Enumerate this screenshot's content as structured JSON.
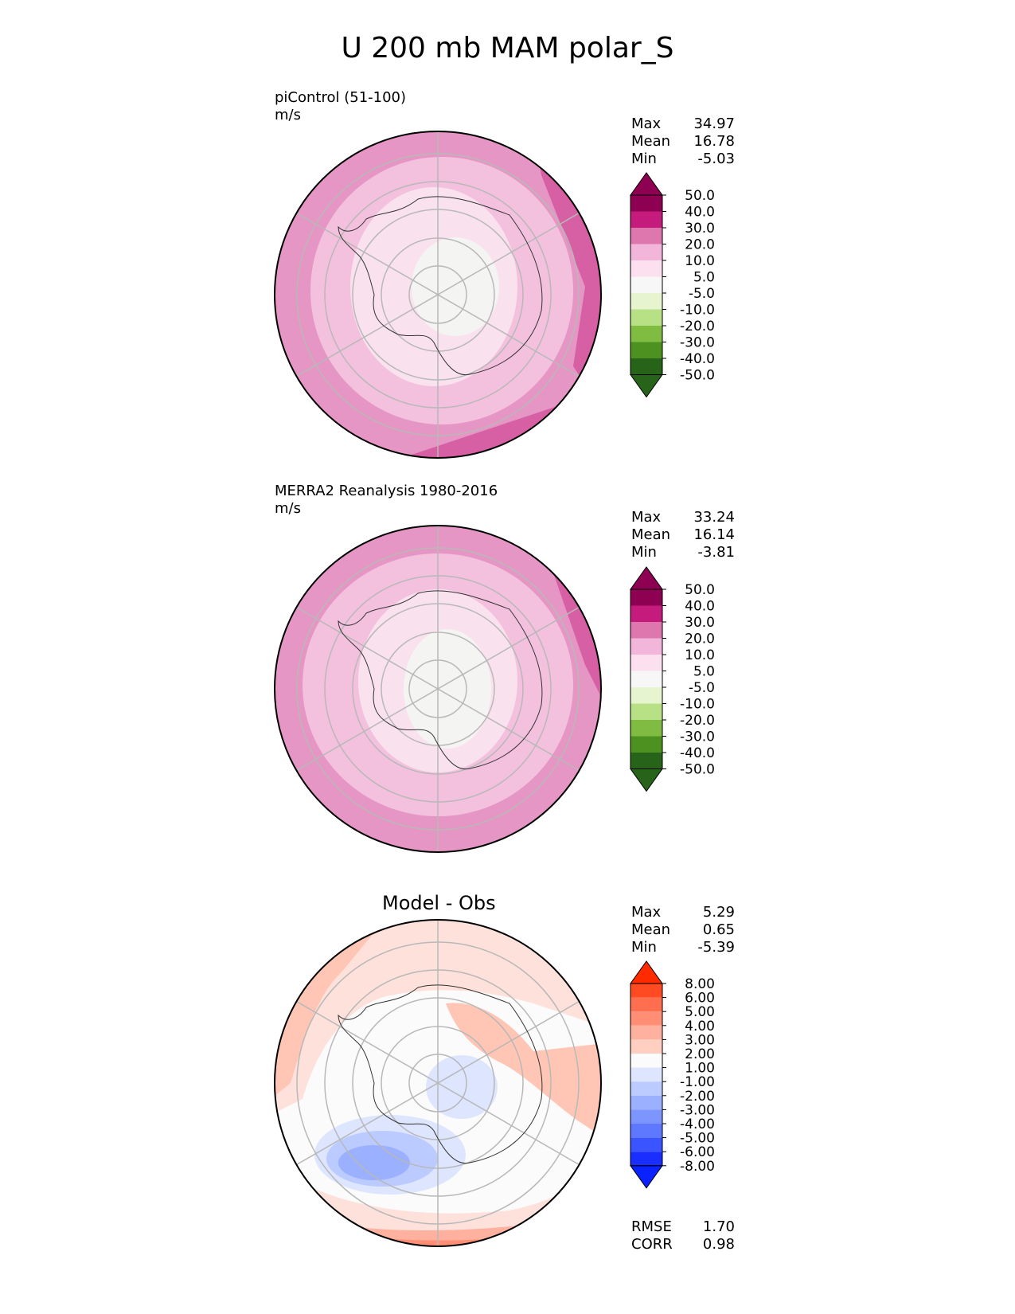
{
  "title": "U 200 mb MAM polar_S",
  "panels": [
    {
      "title": "piControl (51-100)",
      "units": "m/s",
      "stats": [
        {
          "label": "Max",
          "value": "34.97"
        },
        {
          "label": "Mean",
          "value": "16.78"
        },
        {
          "label": "Min",
          "value": "-5.03"
        }
      ]
    },
    {
      "title": "MERRA2 Reanalysis 1980-2016",
      "units": "m/s",
      "stats": [
        {
          "label": "Max",
          "value": "33.24"
        },
        {
          "label": "Mean",
          "value": "16.14"
        },
        {
          "label": "Min",
          "value": "-3.81"
        }
      ]
    },
    {
      "title": "Model - Obs",
      "stats": [
        {
          "label": "Max",
          "value": "5.29"
        },
        {
          "label": "Mean",
          "value": "0.65"
        },
        {
          "label": "Min",
          "value": "-5.39"
        }
      ],
      "metrics": [
        {
          "label": "RMSE",
          "value": "1.70"
        },
        {
          "label": "CORR",
          "value": "0.98"
        }
      ]
    }
  ],
  "colorbars": {
    "field": {
      "ticks": [
        "50.0",
        "40.0",
        "30.0",
        "20.0",
        "10.0",
        "5.0",
        "-5.0",
        "-10.0",
        "-20.0",
        "-30.0",
        "-40.0",
        "-50.0"
      ],
      "colors": [
        "#8e0152",
        "#c51b7d",
        "#de77ae",
        "#f1b6da",
        "#fde0ef",
        "#f7f7f7",
        "#e6f5d0",
        "#b8e186",
        "#7fbc41",
        "#4d9221",
        "#276419"
      ],
      "over": "#8e0152",
      "under": "#276419"
    },
    "diff": {
      "ticks": [
        "8.00",
        "6.00",
        "5.00",
        "4.00",
        "3.00",
        "2.00",
        "1.00",
        "-1.00",
        "-2.00",
        "-3.00",
        "-4.00",
        "-5.00",
        "-6.00",
        "-8.00"
      ],
      "colors": [
        "#ff4a22",
        "#ff6e4f",
        "#ff8e74",
        "#ffb19f",
        "#ffcfc2",
        "#fbfbfb",
        "#dde5ff",
        "#bccbff",
        "#9bb0ff",
        "#7d95ff",
        "#5e78ff",
        "#3a55ff",
        "#1a2fff"
      ],
      "over": "#ff2a00",
      "under": "#0a22ff"
    }
  }
}
